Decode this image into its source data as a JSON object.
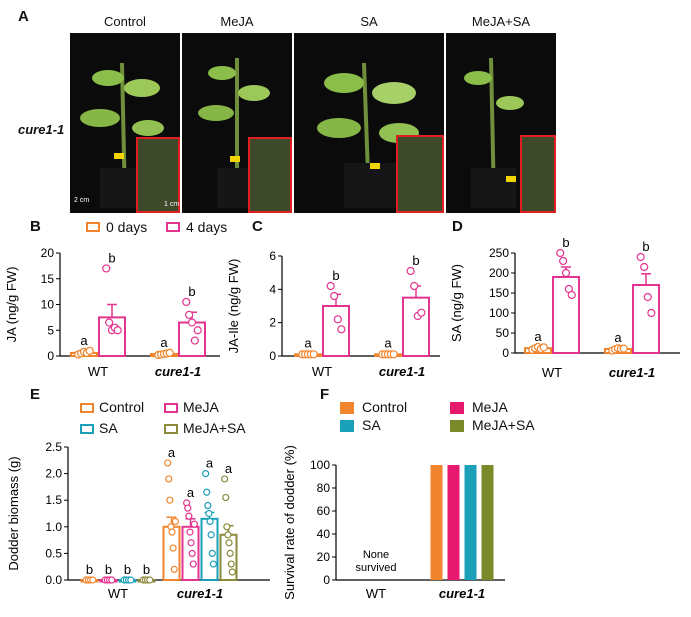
{
  "panel_a": {
    "label": "A",
    "row_label": "cure1-1",
    "columns": [
      "Control",
      "MeJA",
      "SA",
      "MeJA+SA"
    ],
    "scale_labels": [
      "2 cm",
      "1 cm"
    ]
  },
  "legend_top": {
    "items": [
      {
        "name": "0 days",
        "color": "#f0852d"
      },
      {
        "name": "4 days",
        "color": "#e3348f"
      }
    ]
  },
  "legend_e": {
    "items": [
      {
        "name": "Control",
        "color": "#f0852d"
      },
      {
        "name": "MeJA",
        "color": "#e3348f"
      },
      {
        "name": "SA",
        "color": "#1aa0b8"
      },
      {
        "name": "MeJA+SA",
        "color": "#8a8a3a"
      }
    ]
  },
  "legend_f": {
    "items": [
      {
        "name": "Control",
        "color": "#f0852d"
      },
      {
        "name": "MeJA",
        "color": "#e6196f"
      },
      {
        "name": "SA",
        "color": "#1aa0b8"
      },
      {
        "name": "MeJA+SA",
        "color": "#7a8a2a"
      }
    ]
  },
  "chart_data": [
    {
      "id": "B",
      "label": "B",
      "type": "bar",
      "categories": [
        "WT",
        "cure1-1"
      ],
      "ylabel": "JA (ng/g FW)",
      "ylim": [
        0,
        20
      ],
      "yticks": [
        0,
        5,
        10,
        15,
        20
      ],
      "series": [
        {
          "name": "0 days",
          "color": "#f0852d",
          "values": [
            0.6,
            0.4
          ],
          "errors": [
            0.2,
            0.2
          ],
          "letters": [
            "a",
            "a"
          ],
          "points": [
            [
              0.3,
              0.5,
              0.8,
              0.6,
              1.0
            ],
            [
              0.2,
              0.3,
              0.4,
              0.5,
              0.6
            ]
          ]
        },
        {
          "name": "4 days",
          "color": "#e3348f",
          "values": [
            7.5,
            6.5
          ],
          "errors": [
            2.5,
            2.0
          ],
          "letters": [
            "b",
            "b"
          ],
          "points": [
            [
              17.0,
              6.5,
              5.0,
              5.5,
              5.0
            ],
            [
              10.5,
              8.0,
              6.5,
              3.0,
              5.0
            ]
          ]
        }
      ]
    },
    {
      "id": "C",
      "label": "C",
      "type": "bar",
      "categories": [
        "WT",
        "cure1-1"
      ],
      "ylabel": "JA-Ile (ng/g FW)",
      "ylim": [
        0,
        6
      ],
      "yticks": [
        0,
        2,
        4,
        6
      ],
      "series": [
        {
          "name": "0 days",
          "color": "#f0852d",
          "values": [
            0.1,
            0.1
          ],
          "errors": [
            0.05,
            0.05
          ],
          "letters": [
            "a",
            "a"
          ],
          "points": [
            [
              0.1,
              0.1,
              0.1,
              0.1,
              0.1
            ],
            [
              0.1,
              0.1,
              0.1,
              0.1,
              0.1
            ]
          ]
        },
        {
          "name": "4 days",
          "color": "#e3348f",
          "values": [
            3.0,
            3.5
          ],
          "errors": [
            0.7,
            0.7
          ],
          "letters": [
            "b",
            "b"
          ],
          "points": [
            [
              4.2,
              3.6,
              2.2,
              1.6
            ],
            [
              5.1,
              4.2,
              2.4,
              2.6
            ]
          ]
        }
      ]
    },
    {
      "id": "D",
      "label": "D",
      "type": "bar",
      "categories": [
        "WT",
        "cure1-1"
      ],
      "ylabel": "SA (ng/g FW)",
      "ylim": [
        0,
        250
      ],
      "yticks": [
        0,
        50,
        100,
        150,
        200,
        250
      ],
      "series": [
        {
          "name": "0 days",
          "color": "#f0852d",
          "values": [
            12,
            10
          ],
          "errors": [
            3,
            3
          ],
          "letters": [
            "a",
            "a"
          ],
          "points": [
            [
              8,
              12,
              15,
              10,
              14
            ],
            [
              6,
              9,
              12,
              10,
              11
            ]
          ]
        },
        {
          "name": "4 days",
          "color": "#e3348f",
          "values": [
            190,
            170
          ],
          "errors": [
            25,
            28
          ],
          "letters": [
            "b",
            "b"
          ],
          "points": [
            [
              250,
              230,
              200,
              160,
              145
            ],
            [
              240,
              215,
              140,
              100
            ]
          ]
        }
      ]
    },
    {
      "id": "E",
      "label": "E",
      "type": "bar",
      "categories": [
        "WT",
        "cure1-1"
      ],
      "ylabel": "Dodder biomass (g)",
      "ylim": [
        0,
        2.5
      ],
      "yticks": [
        0.0,
        0.5,
        1.0,
        1.5,
        2.0,
        2.5
      ],
      "series": [
        {
          "name": "Control",
          "color": "#f0852d",
          "values": [
            0,
            1.0
          ],
          "errors": [
            0,
            0.18
          ],
          "letters": [
            "b",
            "a"
          ],
          "points": [
            [
              0,
              0,
              0,
              0
            ],
            [
              2.2,
              1.9,
              1.5,
              1.0,
              0.9,
              0.6,
              0.2,
              1.1
            ]
          ]
        },
        {
          "name": "MeJA",
          "color": "#e3348f",
          "values": [
            0,
            1.0
          ],
          "errors": [
            0,
            0.15
          ],
          "letters": [
            "b",
            "a"
          ],
          "points": [
            [
              0,
              0,
              0,
              0
            ],
            [
              1.45,
              1.35,
              1.2,
              0.9,
              0.7,
              0.5,
              0.3,
              1.05
            ]
          ]
        },
        {
          "name": "SA",
          "color": "#1aa0b8",
          "values": [
            0,
            1.15
          ],
          "errors": [
            0,
            0.12
          ],
          "letters": [
            "b",
            "a"
          ],
          "points": [
            [
              0,
              0,
              0,
              0
            ],
            [
              2.0,
              1.65,
              1.4,
              1.25,
              1.1,
              0.85,
              0.5,
              0.3
            ]
          ]
        },
        {
          "name": "MeJA+SA",
          "color": "#8a8a3a",
          "values": [
            0,
            0.85
          ],
          "errors": [
            0,
            0.17
          ],
          "letters": [
            "b",
            "a"
          ],
          "points": [
            [
              0,
              0,
              0,
              0
            ],
            [
              1.9,
              1.55,
              1.0,
              0.85,
              0.7,
              0.5,
              0.3,
              0.15
            ]
          ]
        }
      ]
    },
    {
      "id": "F",
      "label": "F",
      "type": "bar",
      "categories": [
        "WT",
        "cure1-1"
      ],
      "ylabel": "Survival rate of dodder (%)",
      "ylim": [
        0,
        100
      ],
      "yticks": [
        0,
        20,
        40,
        60,
        80,
        100
      ],
      "annotation": "None survived",
      "series": [
        {
          "name": "Control",
          "color": "#f0852d",
          "values": [
            0,
            100
          ]
        },
        {
          "name": "MeJA",
          "color": "#e6196f",
          "values": [
            0,
            100
          ]
        },
        {
          "name": "SA",
          "color": "#1aa0b8",
          "values": [
            0,
            100
          ]
        },
        {
          "name": "MeJA+SA",
          "color": "#7a8a2a",
          "values": [
            0,
            100
          ]
        }
      ]
    }
  ]
}
